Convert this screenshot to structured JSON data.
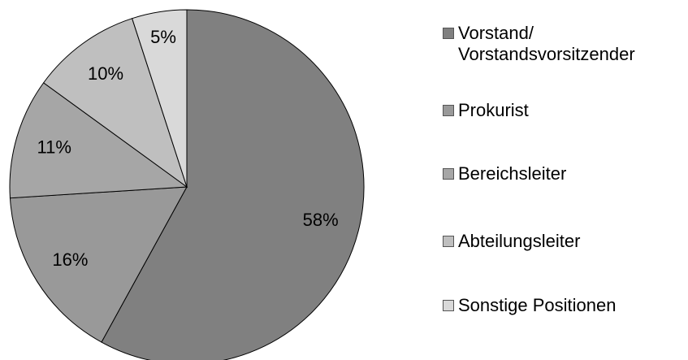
{
  "chart_data": {
    "type": "pie",
    "categories": [
      "Vorstand/ Vorstandsvorsitzender",
      "Prokurist",
      "Bereichsleiter",
      "Abteilungsleiter",
      "Sonstige Positionen"
    ],
    "values": [
      58,
      16,
      11,
      10,
      5
    ],
    "value_labels": [
      "58%",
      "16%",
      "11%",
      "10%",
      "5%"
    ],
    "colors": [
      "#808080",
      "#999999",
      "#a6a6a6",
      "#bfbfbf",
      "#d9d9d9"
    ],
    "legend": "right"
  }
}
